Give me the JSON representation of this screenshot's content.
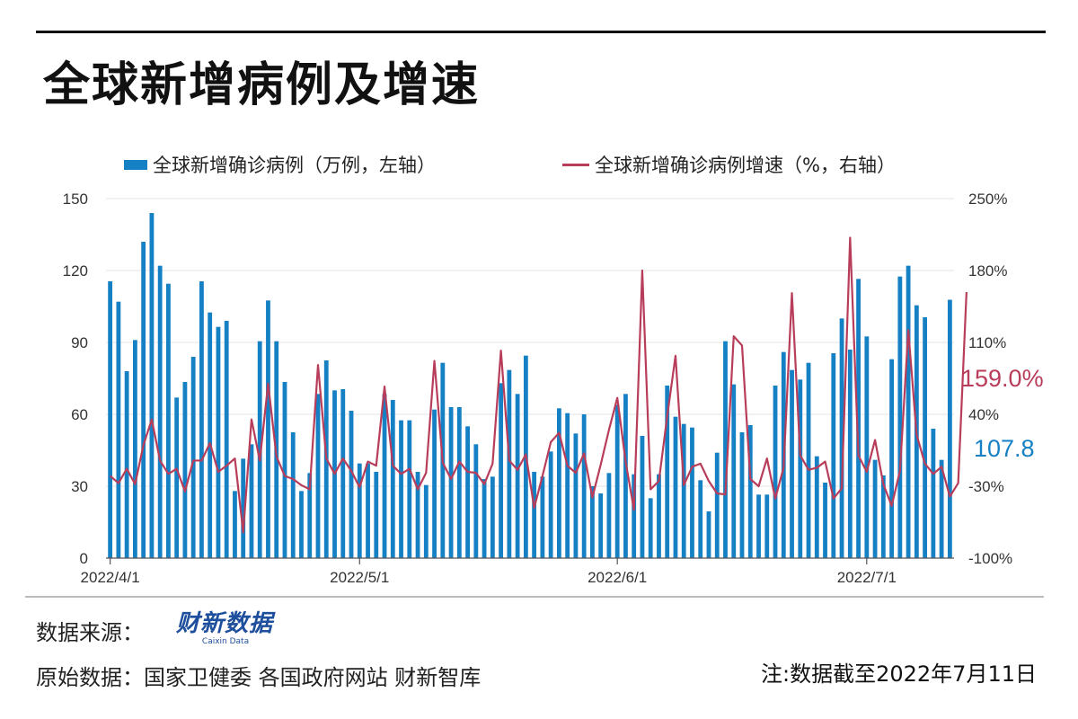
{
  "header": {
    "title": "全球新增病例及增速"
  },
  "legend": {
    "bar_label": "全球新增确诊病例（万例，左轴）",
    "line_label": "全球新增确诊病例增速（%，右轴）"
  },
  "callouts": {
    "last_rate": "159.0%",
    "last_cases": "107.8"
  },
  "footer": {
    "source_label": "数据来源：",
    "logo_cn": "财新数据",
    "logo_en": "Caixin Data",
    "original": "原始数据：国家卫健委 各国政府网站 财新智库",
    "note": "注:数据截至2022年7月11日"
  },
  "colors": {
    "bar": "#1680c4",
    "line": "#b83d5a",
    "callout_rate": "#b83d5a",
    "callout_cases": "#1680c4"
  },
  "chart_data": {
    "type": "bar+line",
    "title": "全球新增病例及增速",
    "x_start": "2022-04-01",
    "x_end": "2022-07-11",
    "x_ticks": [
      "2022/4/1",
      "2022/5/1",
      "2022/6/1",
      "2022/7/1"
    ],
    "y_left": {
      "min": 0,
      "max": 150,
      "ticks": [
        "0",
        "30",
        "60",
        "90",
        "120",
        "150"
      ]
    },
    "y_right": {
      "min": -100,
      "max": 250,
      "ticks": [
        "-100%",
        "-30%",
        "40%",
        "110%",
        "180%",
        "250%"
      ]
    },
    "grid": true,
    "legend_position": "top",
    "series": [
      {
        "name": "全球新增确诊病例（万例，左轴）",
        "axis": "left",
        "kind": "bar",
        "values": [
          115.5,
          107,
          78,
          91,
          132,
          144,
          122,
          114.5,
          67,
          73.5,
          84,
          115.5,
          102.5,
          96.5,
          99,
          28,
          41.5,
          47.5,
          90.5,
          107.5,
          90.5,
          73.5,
          52.5,
          28,
          35.5,
          68.5,
          82.5,
          70,
          70.5,
          61.5,
          39.5,
          39.5,
          36,
          68.5,
          66,
          57.5,
          57.5,
          36,
          30.5,
          62,
          81.5,
          63,
          63,
          55,
          47.5,
          33,
          34,
          73,
          78.5,
          68.5,
          84.5,
          36,
          34,
          44.5,
          62.5,
          60.5,
          52,
          60,
          30,
          27,
          35.5,
          64,
          68.5,
          35,
          51,
          25,
          35,
          72,
          59,
          56,
          54.5,
          32.5,
          19.5,
          44,
          90.5,
          72.5,
          52.5,
          55.5,
          26.5,
          26.5,
          72,
          86,
          78.5,
          74.5,
          81.5,
          42.5,
          31.5,
          85.5,
          100,
          87,
          116.5,
          92.5,
          41,
          34.5,
          83,
          117.5,
          122,
          105.5,
          100.5,
          54,
          41,
          107.8
        ]
      },
      {
        "name": "全球新增确诊病例增速（%，右轴）",
        "axis": "right",
        "kind": "line",
        "values": [
          -20,
          -27,
          -13,
          -28,
          10,
          35,
          -5,
          -18,
          -13,
          -35,
          -5,
          -5,
          12,
          -16,
          -10,
          -3,
          -75,
          35,
          -5,
          70,
          -1,
          -20,
          -23,
          -29,
          -33,
          88,
          -3,
          -18,
          -3,
          -15,
          -31,
          -6,
          -10,
          67,
          -10,
          -18,
          -13,
          -33,
          -17,
          92,
          -7,
          -23,
          -6,
          -16,
          -17,
          -28,
          -8,
          102,
          -5,
          -14,
          1,
          -51,
          -20,
          13,
          22,
          -10,
          -17,
          2,
          -41,
          -9,
          25,
          56,
          -6,
          -53,
          180,
          -33,
          -25,
          38,
          97,
          -29,
          -11,
          -8,
          -25,
          -37,
          -38,
          116,
          107,
          -23,
          -30,
          -3,
          -42,
          -12,
          158,
          0,
          -14,
          -12,
          -6,
          -42,
          -32,
          212,
          0,
          -16,
          15,
          -28,
          -49,
          -15,
          122,
          20,
          -8,
          -18,
          -11,
          -40,
          -27,
          159
        ]
      }
    ]
  }
}
